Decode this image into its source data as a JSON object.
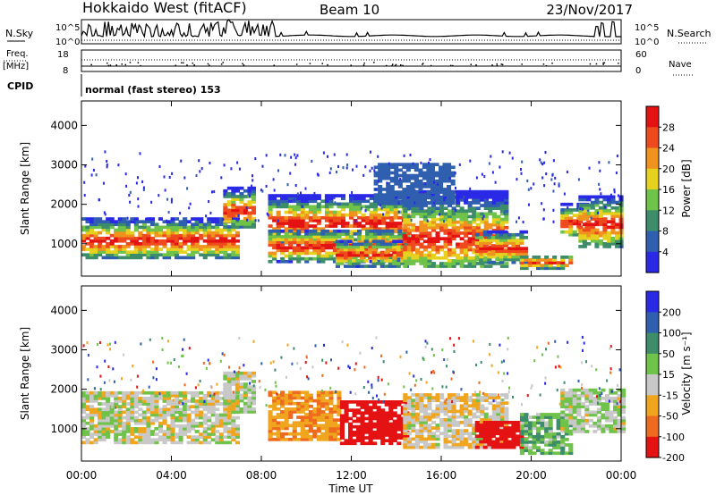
{
  "header": {
    "station": "Hokkaido West (fitACF)",
    "beam": "Beam 10",
    "date": "23/Nov/2017"
  },
  "panels": {
    "nsky_label": "N.Sky",
    "nsearch_label": "N.Search",
    "freq_label_1": "Freq.",
    "freq_label_2": "[MHz]",
    "nave_label": "Nave",
    "cpid_label": "CPID",
    "cpid_text": "normal (fast stereo) 153",
    "noise_ticks_left": [
      "10^5",
      "10^0"
    ],
    "noise_ticks_right": [
      "10^5",
      "10^0"
    ],
    "freq_ticks": [
      "18",
      "8"
    ],
    "nave_ticks": [
      "60",
      "0"
    ]
  },
  "chart_data": [
    {
      "type": "heatmap",
      "parameter": "Power",
      "ylabel": "Slant Range [km]",
      "xlabel": "Time UT",
      "x_ticks": [
        "00:00",
        "04:00",
        "08:00",
        "12:00",
        "16:00",
        "20:00",
        "00:00"
      ],
      "y_ticks": [
        1000,
        2000,
        3000,
        4000
      ],
      "ylim": [
        180,
        4620
      ],
      "xlim_hours": [
        0,
        24
      ],
      "colorbar_label": "Power [dB]",
      "colorbar_ticks": [
        4,
        8,
        12,
        16,
        20,
        24,
        28
      ],
      "colorbar_range": [
        0,
        32
      ],
      "colors": [
        "#2a2ae6",
        "#2f5fae",
        "#3d8c6a",
        "#6fc24a",
        "#e6d21e",
        "#f0921e",
        "#ee4a1e",
        "#e41212"
      ],
      "regions": [
        {
          "t0": 0.0,
          "t1": 6.9,
          "r0": 620,
          "r1": 1650,
          "peak": 1050
        },
        {
          "t0": 6.3,
          "t1": 7.6,
          "r0": 1400,
          "r1": 2400,
          "peak": 1800
        },
        {
          "t0": 8.3,
          "t1": 14.5,
          "r0": 1000,
          "r1": 2200,
          "peak": 1500
        },
        {
          "t0": 8.3,
          "t1": 14.5,
          "r0": 520,
          "r1": 1350,
          "peak": 900
        },
        {
          "t0": 11.3,
          "t1": 14.6,
          "r0": 400,
          "r1": 1050,
          "peak": 700
        },
        {
          "t0": 14.3,
          "t1": 18.8,
          "r0": 400,
          "r1": 2300,
          "peak": 1100
        },
        {
          "t0": 17.5,
          "t1": 19.7,
          "r0": 500,
          "r1": 1300,
          "peak": 850
        },
        {
          "t0": 19.5,
          "t1": 21.8,
          "r0": 350,
          "r1": 700,
          "peak": 500
        },
        {
          "t0": 21.3,
          "t1": 22.4,
          "r0": 1200,
          "r1": 2000,
          "peak": 1500
        },
        {
          "t0": 22.1,
          "t1": 24.0,
          "r0": 900,
          "r1": 2200,
          "peak": 1450
        },
        {
          "t0": 13.0,
          "t1": 16.5,
          "r0": 2000,
          "r1": 3000,
          "peak": 2400
        }
      ]
    },
    {
      "type": "heatmap",
      "parameter": "Velocity",
      "ylabel": "Slant Range [km]",
      "xlabel": "Time UT",
      "x_ticks": [
        "00:00",
        "04:00",
        "08:00",
        "12:00",
        "16:00",
        "20:00",
        "00:00"
      ],
      "y_ticks": [
        1000,
        2000,
        3000,
        4000
      ],
      "ylim": [
        180,
        4620
      ],
      "xlim_hours": [
        0,
        24
      ],
      "colorbar_label": "Velocity [m s⁻¹]",
      "colorbar_ticks": [
        "200",
        "100",
        "50",
        "15",
        "-15",
        "-50",
        "-100",
        "-200"
      ],
      "colors": [
        "#2a2ae6",
        "#2f5fae",
        "#3d8c6a",
        "#6fc24a",
        "#c8c8c8",
        "#f0a51e",
        "#ee6a1e",
        "#e41212"
      ],
      "regions": [
        {
          "t0": 0.0,
          "t1": 6.9,
          "r0": 620,
          "r1": 1950,
          "v": 0
        },
        {
          "t0": 6.3,
          "t1": 7.6,
          "r0": 1400,
          "r1": 2400,
          "v": 0
        },
        {
          "t0": 8.3,
          "t1": 11.5,
          "r0": 700,
          "r1": 1900,
          "v": -45
        },
        {
          "t0": 11.5,
          "t1": 14.5,
          "r0": 600,
          "r1": 1700,
          "v": -140
        },
        {
          "t0": 14.3,
          "t1": 18.8,
          "r0": 500,
          "r1": 1900,
          "v": -10
        },
        {
          "t0": 17.5,
          "t1": 19.7,
          "r0": 500,
          "r1": 1200,
          "v": -170
        },
        {
          "t0": 19.5,
          "t1": 21.8,
          "r0": 350,
          "r1": 1400,
          "v": 40
        },
        {
          "t0": 21.3,
          "t1": 24.0,
          "r0": 900,
          "r1": 2000,
          "v": 10
        }
      ]
    }
  ]
}
